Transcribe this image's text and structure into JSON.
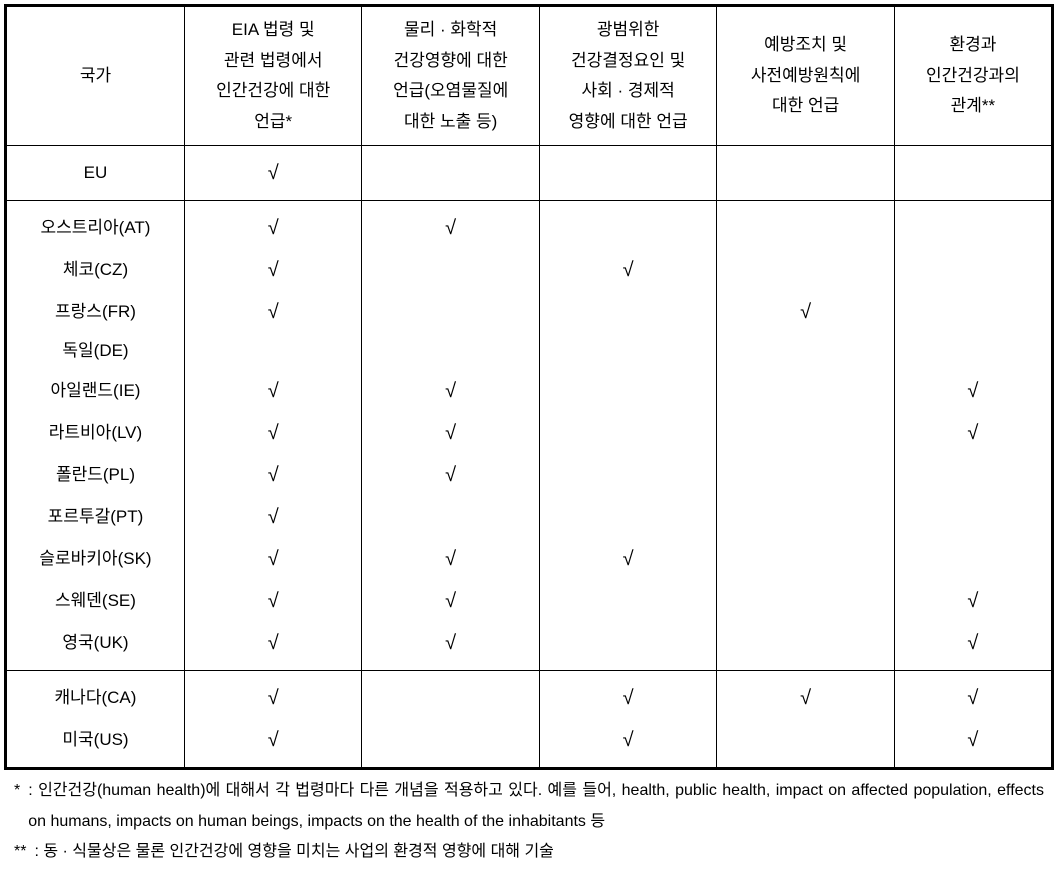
{
  "checkmark_glyph": "√",
  "columns": [
    {
      "key": "country",
      "label_lines": [
        "국가"
      ],
      "width_pct": 17
    },
    {
      "key": "c1",
      "label_lines": [
        "EIA 법령 및",
        "관련 법령에서",
        "인간건강에 대한",
        "언급*"
      ],
      "width_pct": 17
    },
    {
      "key": "c2",
      "label_lines": [
        "물리 · 화학적",
        "건강영향에 대한",
        "언급(오염물질에",
        "대한 노출 등)"
      ],
      "width_pct": 17
    },
    {
      "key": "c3",
      "label_lines": [
        "광범위한",
        "건강결정요인 및",
        "사회 · 경제적",
        "영향에 대한 언급"
      ],
      "width_pct": 17
    },
    {
      "key": "c4",
      "label_lines": [
        "예방조치 및",
        "사전예방원칙에",
        "대한 언급"
      ],
      "width_pct": 17
    },
    {
      "key": "c5",
      "label_lines": [
        "환경과",
        "인간건강과의",
        "관계**"
      ],
      "width_pct": 15
    }
  ],
  "groups": [
    {
      "rows": [
        {
          "country": "EU",
          "c1": true,
          "c2": false,
          "c3": false,
          "c4": false,
          "c5": false
        }
      ]
    },
    {
      "rows": [
        {
          "country": "오스트리아(AT)",
          "c1": true,
          "c2": true,
          "c3": false,
          "c4": false,
          "c5": false
        },
        {
          "country": "체코(CZ)",
          "c1": true,
          "c2": false,
          "c3": true,
          "c4": false,
          "c5": false
        },
        {
          "country": "프랑스(FR)",
          "c1": true,
          "c2": false,
          "c3": false,
          "c4": true,
          "c5": false
        },
        {
          "country": "독일(DE)",
          "c1": false,
          "c2": false,
          "c3": false,
          "c4": false,
          "c5": false
        },
        {
          "country": "아일랜드(IE)",
          "c1": true,
          "c2": true,
          "c3": false,
          "c4": false,
          "c5": true
        },
        {
          "country": "라트비아(LV)",
          "c1": true,
          "c2": true,
          "c3": false,
          "c4": false,
          "c5": true
        },
        {
          "country": "폴란드(PL)",
          "c1": true,
          "c2": true,
          "c3": false,
          "c4": false,
          "c5": false
        },
        {
          "country": "포르투갈(PT)",
          "c1": true,
          "c2": false,
          "c3": false,
          "c4": false,
          "c5": false
        },
        {
          "country": "슬로바키아(SK)",
          "c1": true,
          "c2": true,
          "c3": true,
          "c4": false,
          "c5": false
        },
        {
          "country": "스웨덴(SE)",
          "c1": true,
          "c2": true,
          "c3": false,
          "c4": false,
          "c5": true
        },
        {
          "country": "영국(UK)",
          "c1": true,
          "c2": true,
          "c3": false,
          "c4": false,
          "c5": true
        }
      ]
    },
    {
      "rows": [
        {
          "country": "캐나다(CA)",
          "c1": true,
          "c2": false,
          "c3": true,
          "c4": true,
          "c5": true
        },
        {
          "country": "미국(US)",
          "c1": true,
          "c2": false,
          "c3": true,
          "c4": false,
          "c5": true
        }
      ]
    }
  ],
  "footnotes": [
    {
      "marker": "*",
      "text": ": 인간건강(human health)에 대해서 각 법령마다 다른 개념을 적용하고 있다. 예를 들어, health, public health, impact on affected population, effects on humans, impacts on human beings, impacts on the health of the inhabitants 등"
    },
    {
      "marker": "**",
      "text": ": 동 · 식물상은 물론 인간건강에 영향을 미치는 사업의 환경적 영향에 대해 기술"
    }
  ]
}
